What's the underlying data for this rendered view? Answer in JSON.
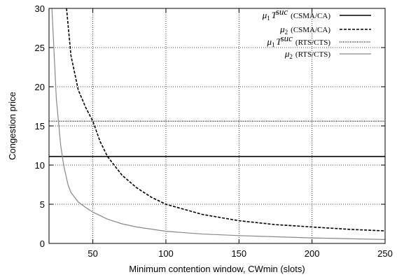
{
  "chart_data": {
    "type": "line",
    "title": "",
    "xlabel": "Minimum contention window, CWmin (slots)",
    "ylabel": "Congestion price",
    "xlim": [
      20,
      250
    ],
    "ylim": [
      0,
      30
    ],
    "xticks": [
      50,
      100,
      150,
      200,
      250
    ],
    "yticks": [
      0,
      5,
      10,
      15,
      20,
      25,
      30
    ],
    "grid": true,
    "legend_position": "top-right",
    "series": [
      {
        "name_sym": "μ1",
        "name_sup": "T",
        "name_supsup": "suc",
        "name_suffix": "(CSMA/CA)",
        "style": "solid",
        "color": "#000000",
        "points": [
          [
            20,
            11.1
          ],
          [
            250,
            11.1
          ]
        ]
      },
      {
        "name_sym": "μ2",
        "name_suffix": "(CSMA/CA)",
        "style": "dashed",
        "color": "#000000",
        "points": [
          [
            32,
            30
          ],
          [
            35,
            24
          ],
          [
            40,
            19.6
          ],
          [
            45,
            17.4
          ],
          [
            50,
            15.6
          ],
          [
            55,
            13.0
          ],
          [
            60,
            11.1
          ],
          [
            70,
            8.7
          ],
          [
            80,
            7.1
          ],
          [
            90,
            5.9
          ],
          [
            100,
            5.0
          ],
          [
            125,
            3.7
          ],
          [
            150,
            2.9
          ],
          [
            175,
            2.4
          ],
          [
            200,
            2.1
          ],
          [
            225,
            1.8
          ],
          [
            250,
            1.6
          ]
        ]
      },
      {
        "name_sym": "μ1",
        "name_sup": "T",
        "name_supsup": "suc",
        "name_suffix": "(RTS/CTS)",
        "style": "dotted",
        "color": "#000000",
        "points": [
          [
            20,
            15.6
          ],
          [
            250,
            15.6
          ]
        ]
      },
      {
        "name_sym": "μ2",
        "name_suffix": "(RTS/CTS)",
        "style": "solid",
        "color": "#888888",
        "points": [
          [
            22,
            30
          ],
          [
            25,
            18.5
          ],
          [
            28,
            12.5
          ],
          [
            30,
            10.0
          ],
          [
            33,
            7.5
          ],
          [
            35,
            6.5
          ],
          [
            40,
            5.3
          ],
          [
            45,
            4.6
          ],
          [
            50,
            4.0
          ],
          [
            60,
            3.1
          ],
          [
            70,
            2.5
          ],
          [
            80,
            2.1
          ],
          [
            100,
            1.55
          ],
          [
            125,
            1.2
          ],
          [
            150,
            1.0
          ],
          [
            175,
            0.85
          ],
          [
            200,
            0.7
          ],
          [
            225,
            0.6
          ],
          [
            250,
            0.5
          ]
        ]
      }
    ]
  }
}
